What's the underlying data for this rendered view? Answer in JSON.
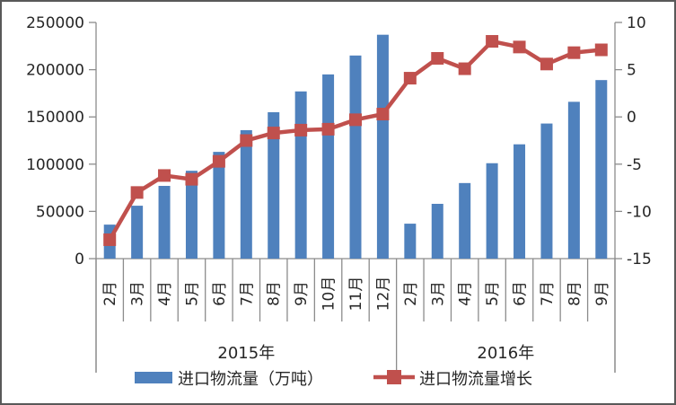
{
  "chart_data": {
    "type": "bar+line",
    "title": "",
    "categories": [
      "2月",
      "3月",
      "4月",
      "5月",
      "6月",
      "7月",
      "8月",
      "9月",
      "10月",
      "11月",
      "12月",
      "2月",
      "3月",
      "4月",
      "5月",
      "6月",
      "7月",
      "8月",
      "9月"
    ],
    "category_groups": [
      {
        "label": "2015年",
        "count": 11
      },
      {
        "label": "2016年",
        "count": 8
      }
    ],
    "series": [
      {
        "name": "进口物流量（万吨）",
        "kind": "bar",
        "axis": "left",
        "color": "#4F81BD",
        "values": [
          36000,
          56000,
          77000,
          93000,
          113000,
          136000,
          155000,
          177000,
          195000,
          215000,
          237000,
          37000,
          58000,
          80000,
          101000,
          121000,
          143000,
          166000,
          189000
        ]
      },
      {
        "name": "进口物流量增长",
        "kind": "line",
        "axis": "right",
        "color": "#C0504D",
        "marker": "square",
        "values": [
          -13,
          -8,
          -6.2,
          -6.6,
          -4.7,
          -2.5,
          -1.7,
          -1.4,
          -1.3,
          -0.3,
          0.3,
          4.1,
          6.2,
          5.1,
          8,
          7.4,
          5.6,
          6.8,
          7.1
        ]
      }
    ],
    "left_axis": {
      "min": 0,
      "max": 250000,
      "tick_step": 50000,
      "tick_labels": [
        "0",
        "50000",
        "100000",
        "150000",
        "200000",
        "250000"
      ]
    },
    "right_axis": {
      "min": -15,
      "max": 10,
      "tick_step": 5,
      "tick_labels": [
        "-15",
        "-10",
        "-5",
        "0",
        "5",
        "10"
      ]
    },
    "legend_position": "bottom",
    "grid": false
  },
  "colors": {
    "bar": "#4F81BD",
    "line": "#C0504D",
    "axis_line": "#8C8C8C",
    "text": "#262626",
    "frame_border": "#595959",
    "background": "#FFFFFF"
  }
}
